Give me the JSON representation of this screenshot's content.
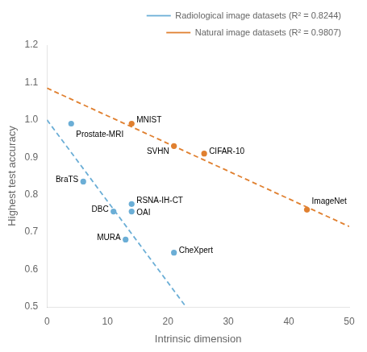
{
  "chart_data": {
    "type": "scatter",
    "x_label": "Intrinsic dimension",
    "y_label": "Highest test accuracy",
    "xlim": [
      0,
      50
    ],
    "ylim": [
      0.5,
      1.2
    ],
    "xticks": [
      0,
      10,
      20,
      30,
      40,
      50
    ],
    "yticks": [
      0.5,
      0.6,
      0.7,
      0.8,
      0.9,
      {
        "value": 1.0,
        "label": "1.0"
      },
      1.1,
      1.2
    ],
    "grid": false,
    "legend": "upper right",
    "series": [
      {
        "name": "Radiological image datasets (R² = 0.8244)",
        "color": "#6baed6",
        "marker": "circle",
        "line_style": "dashed",
        "x": [
          4,
          6,
          11,
          14,
          14,
          13,
          21
        ],
        "y": [
          0.99,
          0.835,
          0.755,
          0.775,
          0.755,
          0.68,
          0.645
        ],
        "point_labels": [
          "Prostate-MRI",
          "BraTS",
          "DBC",
          "RSNA-IH-CT",
          "OAI",
          "MURA",
          "CheXpert"
        ],
        "fit": {
          "x": [
            0,
            23
          ],
          "y": [
            1.0,
            0.5
          ]
        }
      },
      {
        "name": "Natural image datasets (R² = 0.9807)",
        "color": "#e08030",
        "marker": "circle",
        "line_style": "dashed",
        "x": [
          14,
          21,
          26,
          43
        ],
        "y": [
          0.99,
          0.93,
          0.91,
          0.76
        ],
        "point_labels": [
          "MNIST",
          "SVHN",
          "CIFAR-10",
          "ImageNet"
        ],
        "fit": {
          "x": [
            0,
            50
          ],
          "y": [
            1.085,
            0.715
          ]
        }
      }
    ]
  }
}
